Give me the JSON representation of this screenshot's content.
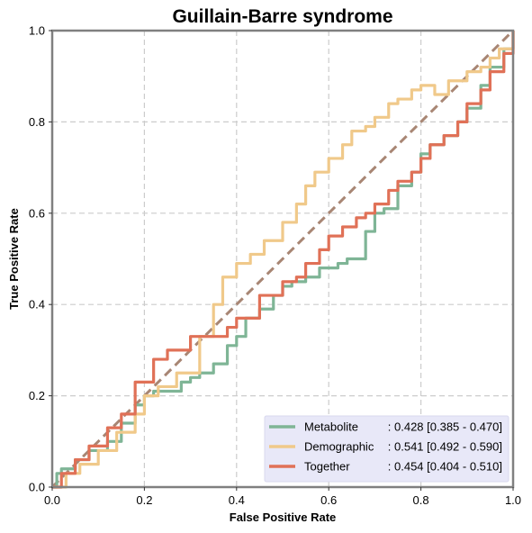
{
  "chart_data": {
    "type": "line",
    "title": "Guillain-Barre syndrome",
    "xlabel": "False Positive Rate",
    "ylabel": "True Positive Rate",
    "xlim": [
      0,
      1
    ],
    "ylim": [
      0,
      1
    ],
    "xticks": [
      "0.0",
      "0.2",
      "0.4",
      "0.6",
      "0.8",
      "1.0"
    ],
    "yticks": [
      "0.0",
      "0.2",
      "0.4",
      "0.6",
      "0.8",
      "1.0"
    ],
    "grid": true,
    "legend_position": "lower-right",
    "legend_background": "#e8e8f8",
    "diagonal": {
      "x": [
        0,
        1
      ],
      "y": [
        0,
        1
      ],
      "color": "#a88674",
      "style": "dashed"
    },
    "series": [
      {
        "name": "Metabolite",
        "legend_value": ": 0.428 [0.385 - 0.470]",
        "color": "#7fb596",
        "x": [
          0,
          0.01,
          0.02,
          0.05,
          0.08,
          0.12,
          0.15,
          0.18,
          0.2,
          0.22,
          0.25,
          0.28,
          0.3,
          0.32,
          0.35,
          0.38,
          0.4,
          0.42,
          0.45,
          0.48,
          0.5,
          0.52,
          0.55,
          0.58,
          0.6,
          0.62,
          0.64,
          0.66,
          0.68,
          0.7,
          0.72,
          0.75,
          0.78,
          0.8,
          0.82,
          0.85,
          0.88,
          0.9,
          0.93,
          0.95,
          0.98,
          1.0
        ],
        "y": [
          0,
          0.03,
          0.04,
          0.06,
          0.08,
          0.1,
          0.14,
          0.18,
          0.2,
          0.21,
          0.21,
          0.23,
          0.24,
          0.25,
          0.27,
          0.31,
          0.33,
          0.37,
          0.39,
          0.42,
          0.44,
          0.45,
          0.46,
          0.48,
          0.48,
          0.49,
          0.5,
          0.5,
          0.56,
          0.6,
          0.61,
          0.66,
          0.69,
          0.73,
          0.75,
          0.77,
          0.8,
          0.83,
          0.88,
          0.92,
          0.96,
          1.0
        ]
      },
      {
        "name": "Demographic",
        "legend_value": ": 0.541 [0.492 - 0.590]",
        "color": "#f0c98a",
        "x": [
          0,
          0.03,
          0.06,
          0.1,
          0.14,
          0.18,
          0.2,
          0.23,
          0.27,
          0.32,
          0.35,
          0.37,
          0.4,
          0.43,
          0.46,
          0.5,
          0.53,
          0.55,
          0.57,
          0.6,
          0.63,
          0.65,
          0.68,
          0.7,
          0.73,
          0.75,
          0.78,
          0.8,
          0.83,
          0.86,
          0.9,
          0.93,
          0.95,
          0.97,
          1.0
        ],
        "y": [
          0,
          0.03,
          0.05,
          0.08,
          0.12,
          0.16,
          0.2,
          0.22,
          0.25,
          0.33,
          0.4,
          0.46,
          0.49,
          0.51,
          0.54,
          0.58,
          0.62,
          0.66,
          0.69,
          0.72,
          0.75,
          0.78,
          0.79,
          0.81,
          0.84,
          0.85,
          0.87,
          0.88,
          0.86,
          0.89,
          0.91,
          0.92,
          0.94,
          0.96,
          1.0
        ]
      },
      {
        "name": "Together",
        "legend_value": ": 0.454 [0.404 - 0.510]",
        "color": "#e07157",
        "x": [
          0,
          0.02,
          0.05,
          0.08,
          0.12,
          0.15,
          0.18,
          0.22,
          0.25,
          0.3,
          0.35,
          0.38,
          0.4,
          0.45,
          0.5,
          0.53,
          0.55,
          0.58,
          0.6,
          0.63,
          0.66,
          0.68,
          0.7,
          0.73,
          0.75,
          0.78,
          0.8,
          0.82,
          0.85,
          0.88,
          0.9,
          0.93,
          0.95,
          0.98,
          1.0
        ],
        "y": [
          0,
          0.03,
          0.06,
          0.09,
          0.13,
          0.16,
          0.23,
          0.28,
          0.3,
          0.33,
          0.33,
          0.35,
          0.37,
          0.42,
          0.45,
          0.46,
          0.49,
          0.52,
          0.55,
          0.57,
          0.59,
          0.6,
          0.62,
          0.65,
          0.67,
          0.69,
          0.72,
          0.75,
          0.77,
          0.8,
          0.84,
          0.87,
          0.91,
          0.95,
          1.0
        ]
      }
    ]
  }
}
